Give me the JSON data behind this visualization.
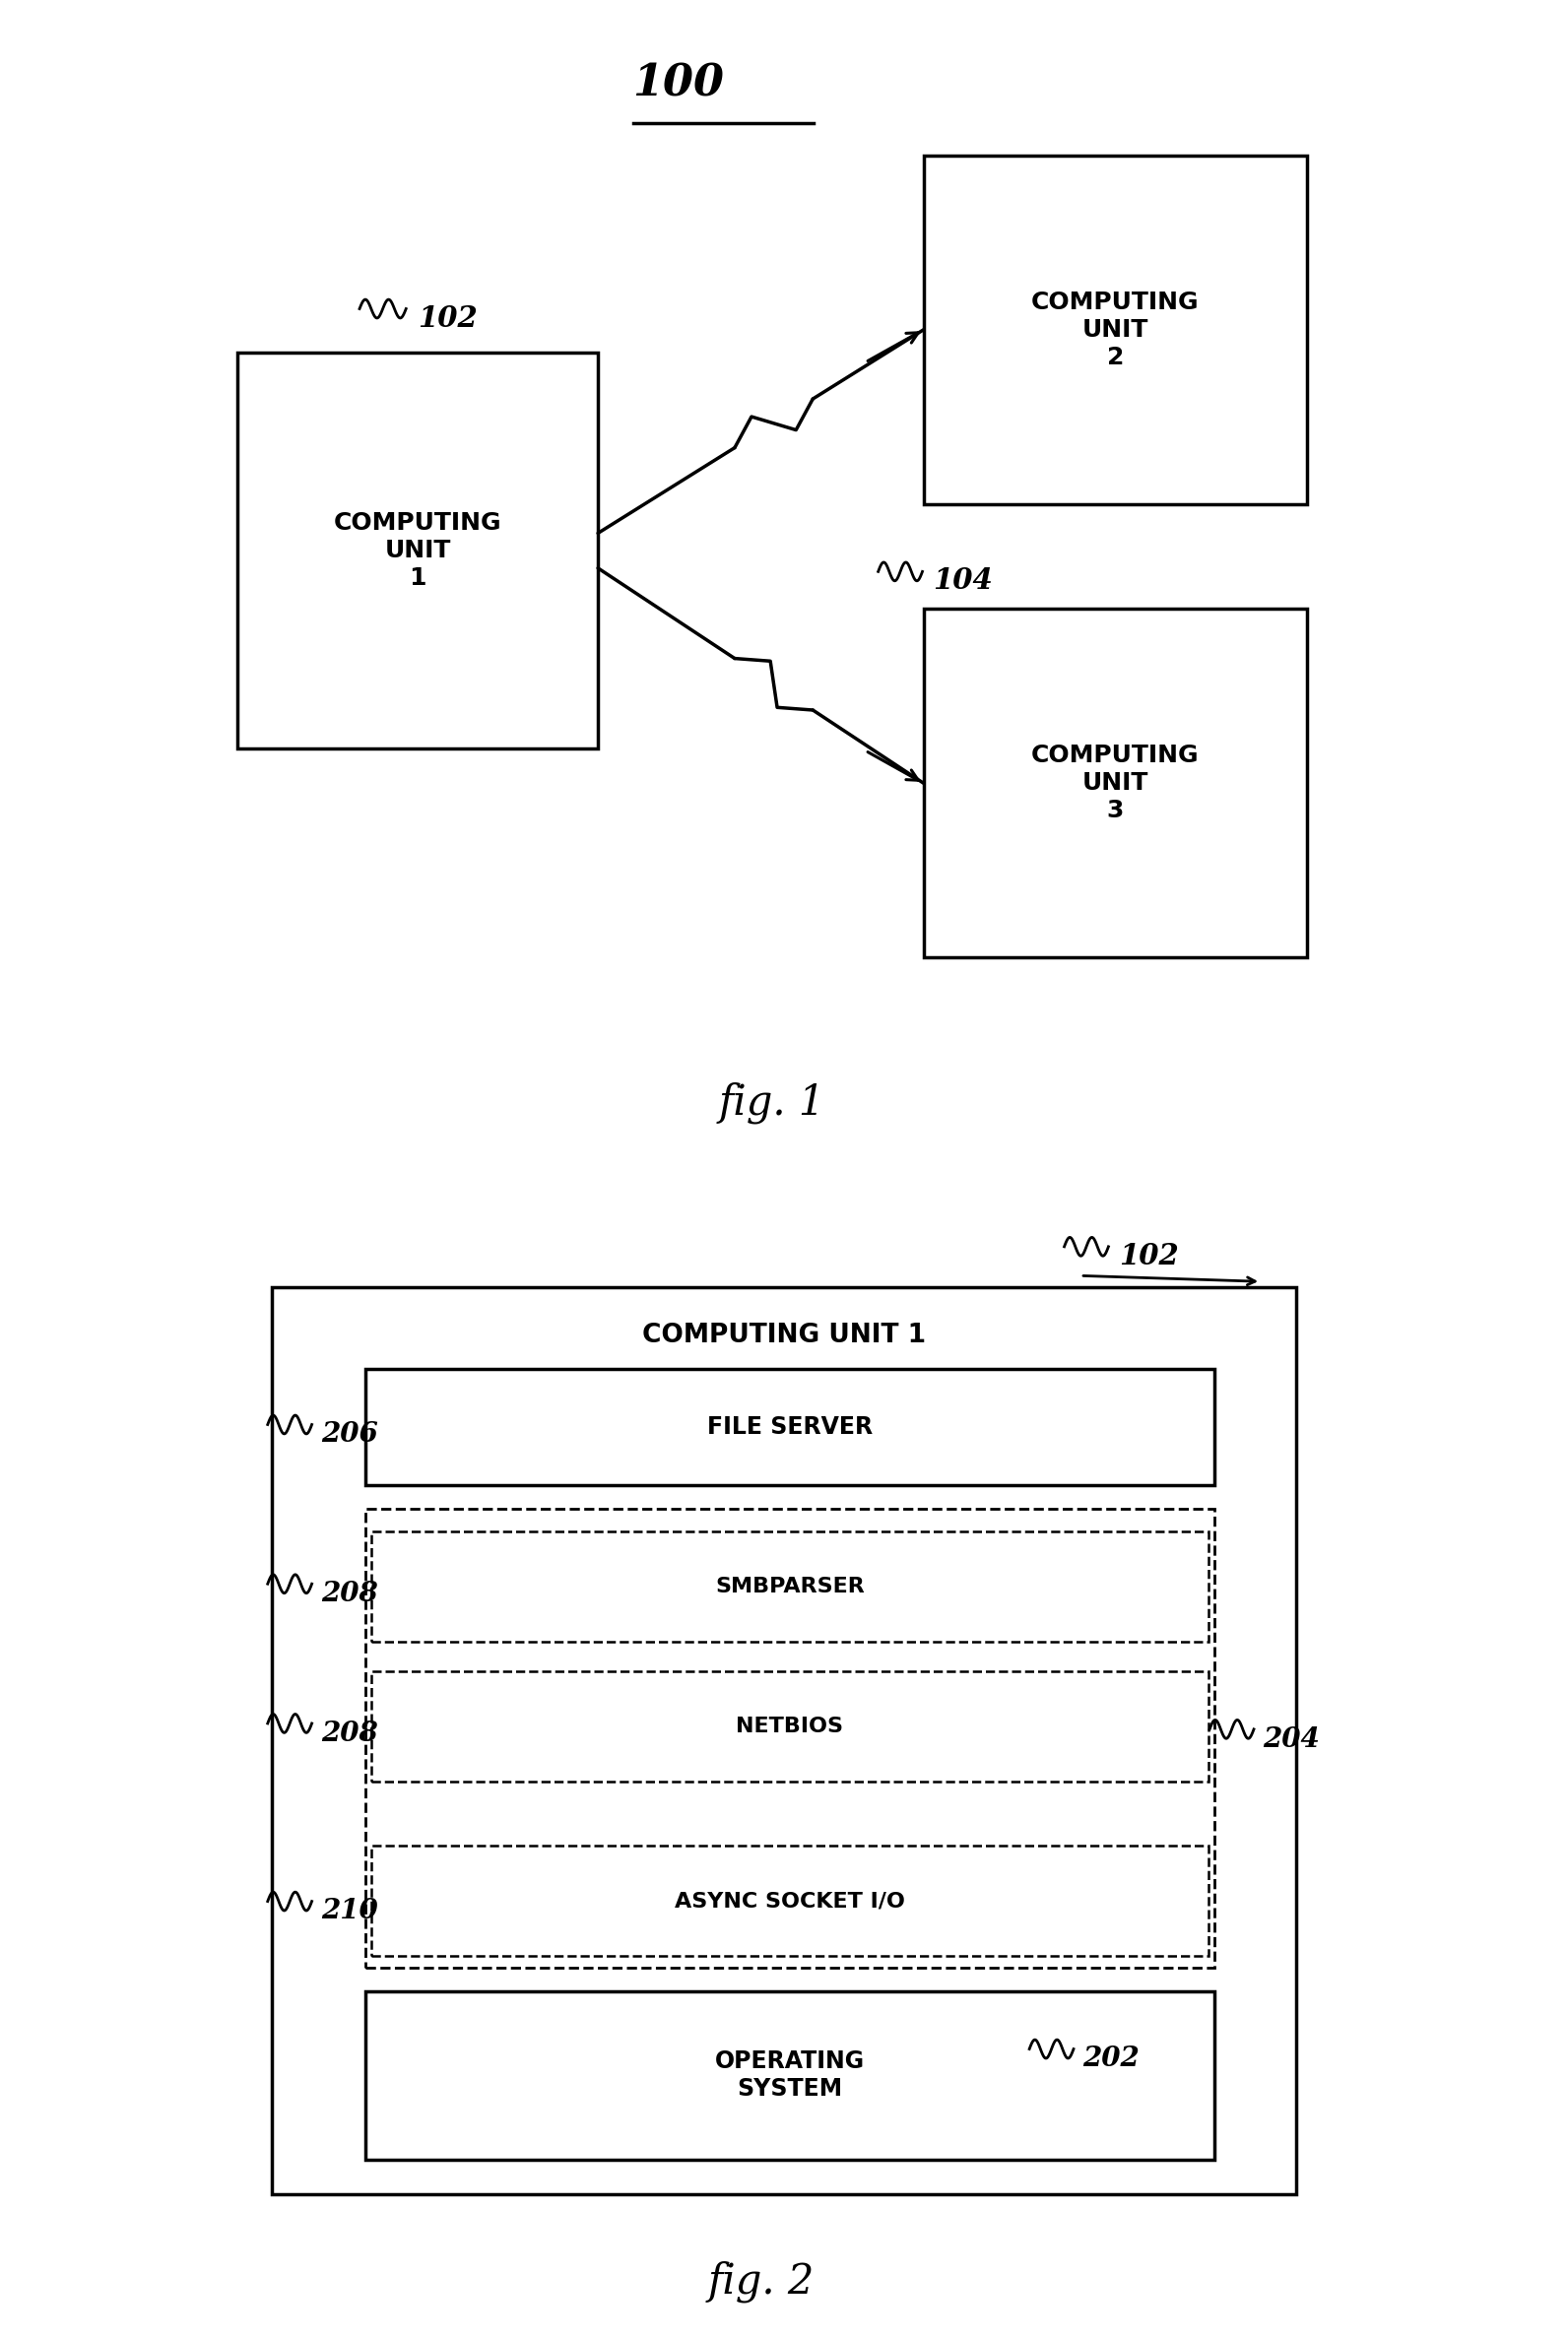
{
  "fig1_label": "100",
  "fig1_caption": "fig. 1",
  "fig2_caption": "fig. 2",
  "cu1_label": "102",
  "cu1_text": "COMPUTING\nUNIT\n1",
  "cu2_text": "COMPUTING\nUNIT\n2",
  "cu3_label": "104",
  "cu3_text": "COMPUTING\nUNIT\n3",
  "fig2_title": "COMPUTING UNIT 1",
  "fig2_cu_label": "102",
  "layer_os_label": "202",
  "layer_os_text": "OPERATING\nSYSTEM",
  "layer_async_label": "210",
  "layer_async_text": "ASYNC SOCKET I/O",
  "layer_netbios_label": "208",
  "layer_netbios_text": "NETBIOS",
  "layer_smb_label": "208",
  "layer_smb_text": "SMBPARSER",
  "layer_fs_label": "206",
  "layer_fs_text": "FILE SERVER",
  "layer_dashed_label": "204",
  "bg_color": "#ffffff",
  "line_color": "#000000"
}
